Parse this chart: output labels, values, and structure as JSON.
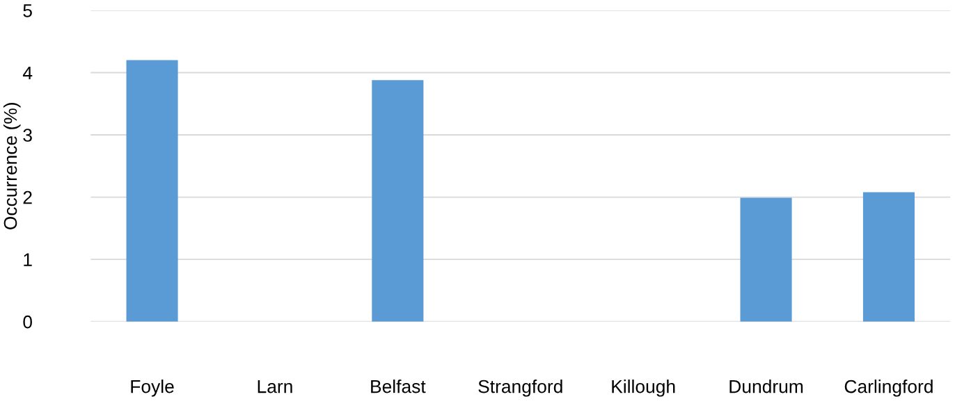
{
  "chart_data": {
    "type": "bar",
    "ylabel": "Occurrence (%)",
    "categories": [
      "Foyle",
      "Larn",
      "Belfast",
      "Strangford",
      "Killough",
      "Dundrum",
      "Carlingford"
    ],
    "values": [
      4.2,
      0,
      3.88,
      0,
      0,
      1.99,
      2.08
    ],
    "color": "#5b9bd5",
    "ylim": [
      0,
      5
    ],
    "yticks": [
      0,
      1,
      2,
      3,
      4,
      5
    ],
    "grid": "y"
  }
}
